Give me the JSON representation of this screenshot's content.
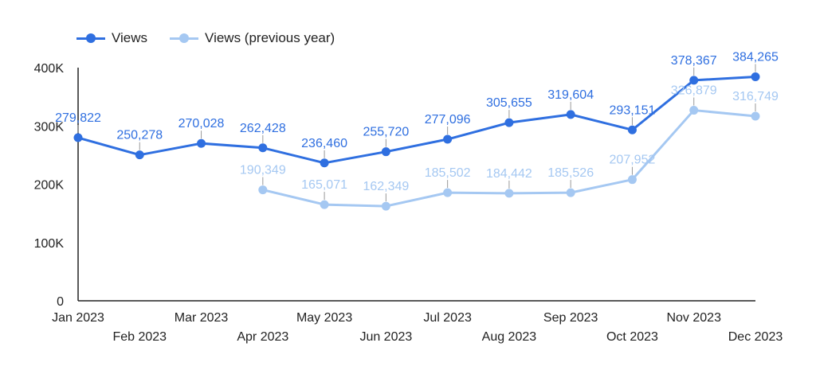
{
  "colors": {
    "current": "#2f6fe0",
    "previous": "#a5c8f2",
    "axis": "#222222",
    "tick_text": "#222222",
    "label_stem": "#999999"
  },
  "legend": {
    "current": "Views",
    "previous": "Views (previous year)"
  },
  "chart_data": {
    "type": "line",
    "categories": [
      "Jan 2023",
      "Feb 2023",
      "Mar 2023",
      "Apr 2023",
      "May 2023",
      "Jun 2023",
      "Jul 2023",
      "Aug 2023",
      "Sep 2023",
      "Oct 2023",
      "Nov 2023",
      "Dec 2023"
    ],
    "series": [
      {
        "name": "Views",
        "values": [
          279822,
          250278,
          270028,
          262428,
          236460,
          255720,
          277096,
          305655,
          319604,
          293151,
          378367,
          384265
        ],
        "labels": [
          "279,822",
          "250,278",
          "270,028",
          "262,428",
          "236,460",
          "255,720",
          "277,096",
          "305,655",
          "319,604",
          "293,151",
          "378,367",
          "384,265"
        ]
      },
      {
        "name": "Views (previous year)",
        "values": [
          null,
          null,
          null,
          190349,
          165071,
          162349,
          185502,
          184442,
          185526,
          207952,
          326879,
          316749
        ],
        "labels": [
          null,
          null,
          null,
          "190,349",
          "165,071",
          "162,349",
          "185,502",
          "184,442",
          "185,526",
          "207,952",
          "326,879",
          "316,749"
        ]
      }
    ],
    "title": "",
    "xlabel": "",
    "ylabel": "",
    "ylim": [
      0,
      400000
    ],
    "yticks": [
      0,
      100000,
      200000,
      300000,
      400000
    ],
    "ytick_labels": [
      "0",
      "100K",
      "200K",
      "300K",
      "400K"
    ],
    "grid": false,
    "legend_position": "top-left"
  }
}
